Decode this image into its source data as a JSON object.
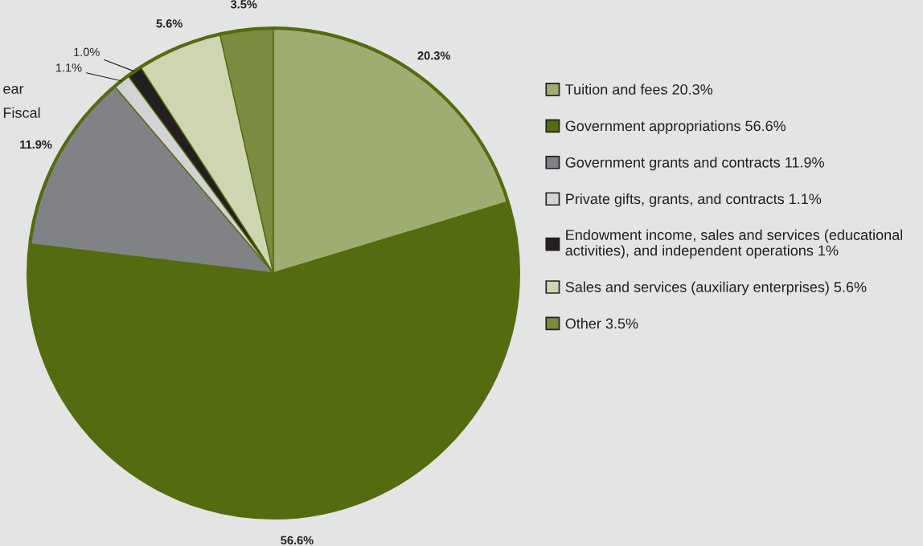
{
  "chart_data": {
    "type": "pie",
    "categories": [
      "Tuition and fees 20.3%",
      "Government appropriations 56.6%",
      "Government grants and contracts 11.9%",
      "Private gifts, grants, and contracts 1.1%",
      "Endowment income, sales and services (educational\nactivities), and independent operations 1%",
      "Sales and services (auxiliary enterprises) 5.6%",
      "Other 3.5%"
    ],
    "values": [
      20.3,
      56.6,
      11.9,
      1.1,
      1.0,
      5.6,
      3.5
    ],
    "value_labels": [
      "20.3%",
      "56.6%",
      "11.9%",
      "1.1%",
      "1.0%",
      "5.6%",
      "3.5%"
    ],
    "colors": [
      "#a0ad72",
      "#556b0f",
      "#808285",
      "#d1d3d4",
      "#231f20",
      "#cfd5b0",
      "#7a8c3f"
    ],
    "legend": "right",
    "annotations": [
      "ear",
      "Fiscal"
    ]
  }
}
